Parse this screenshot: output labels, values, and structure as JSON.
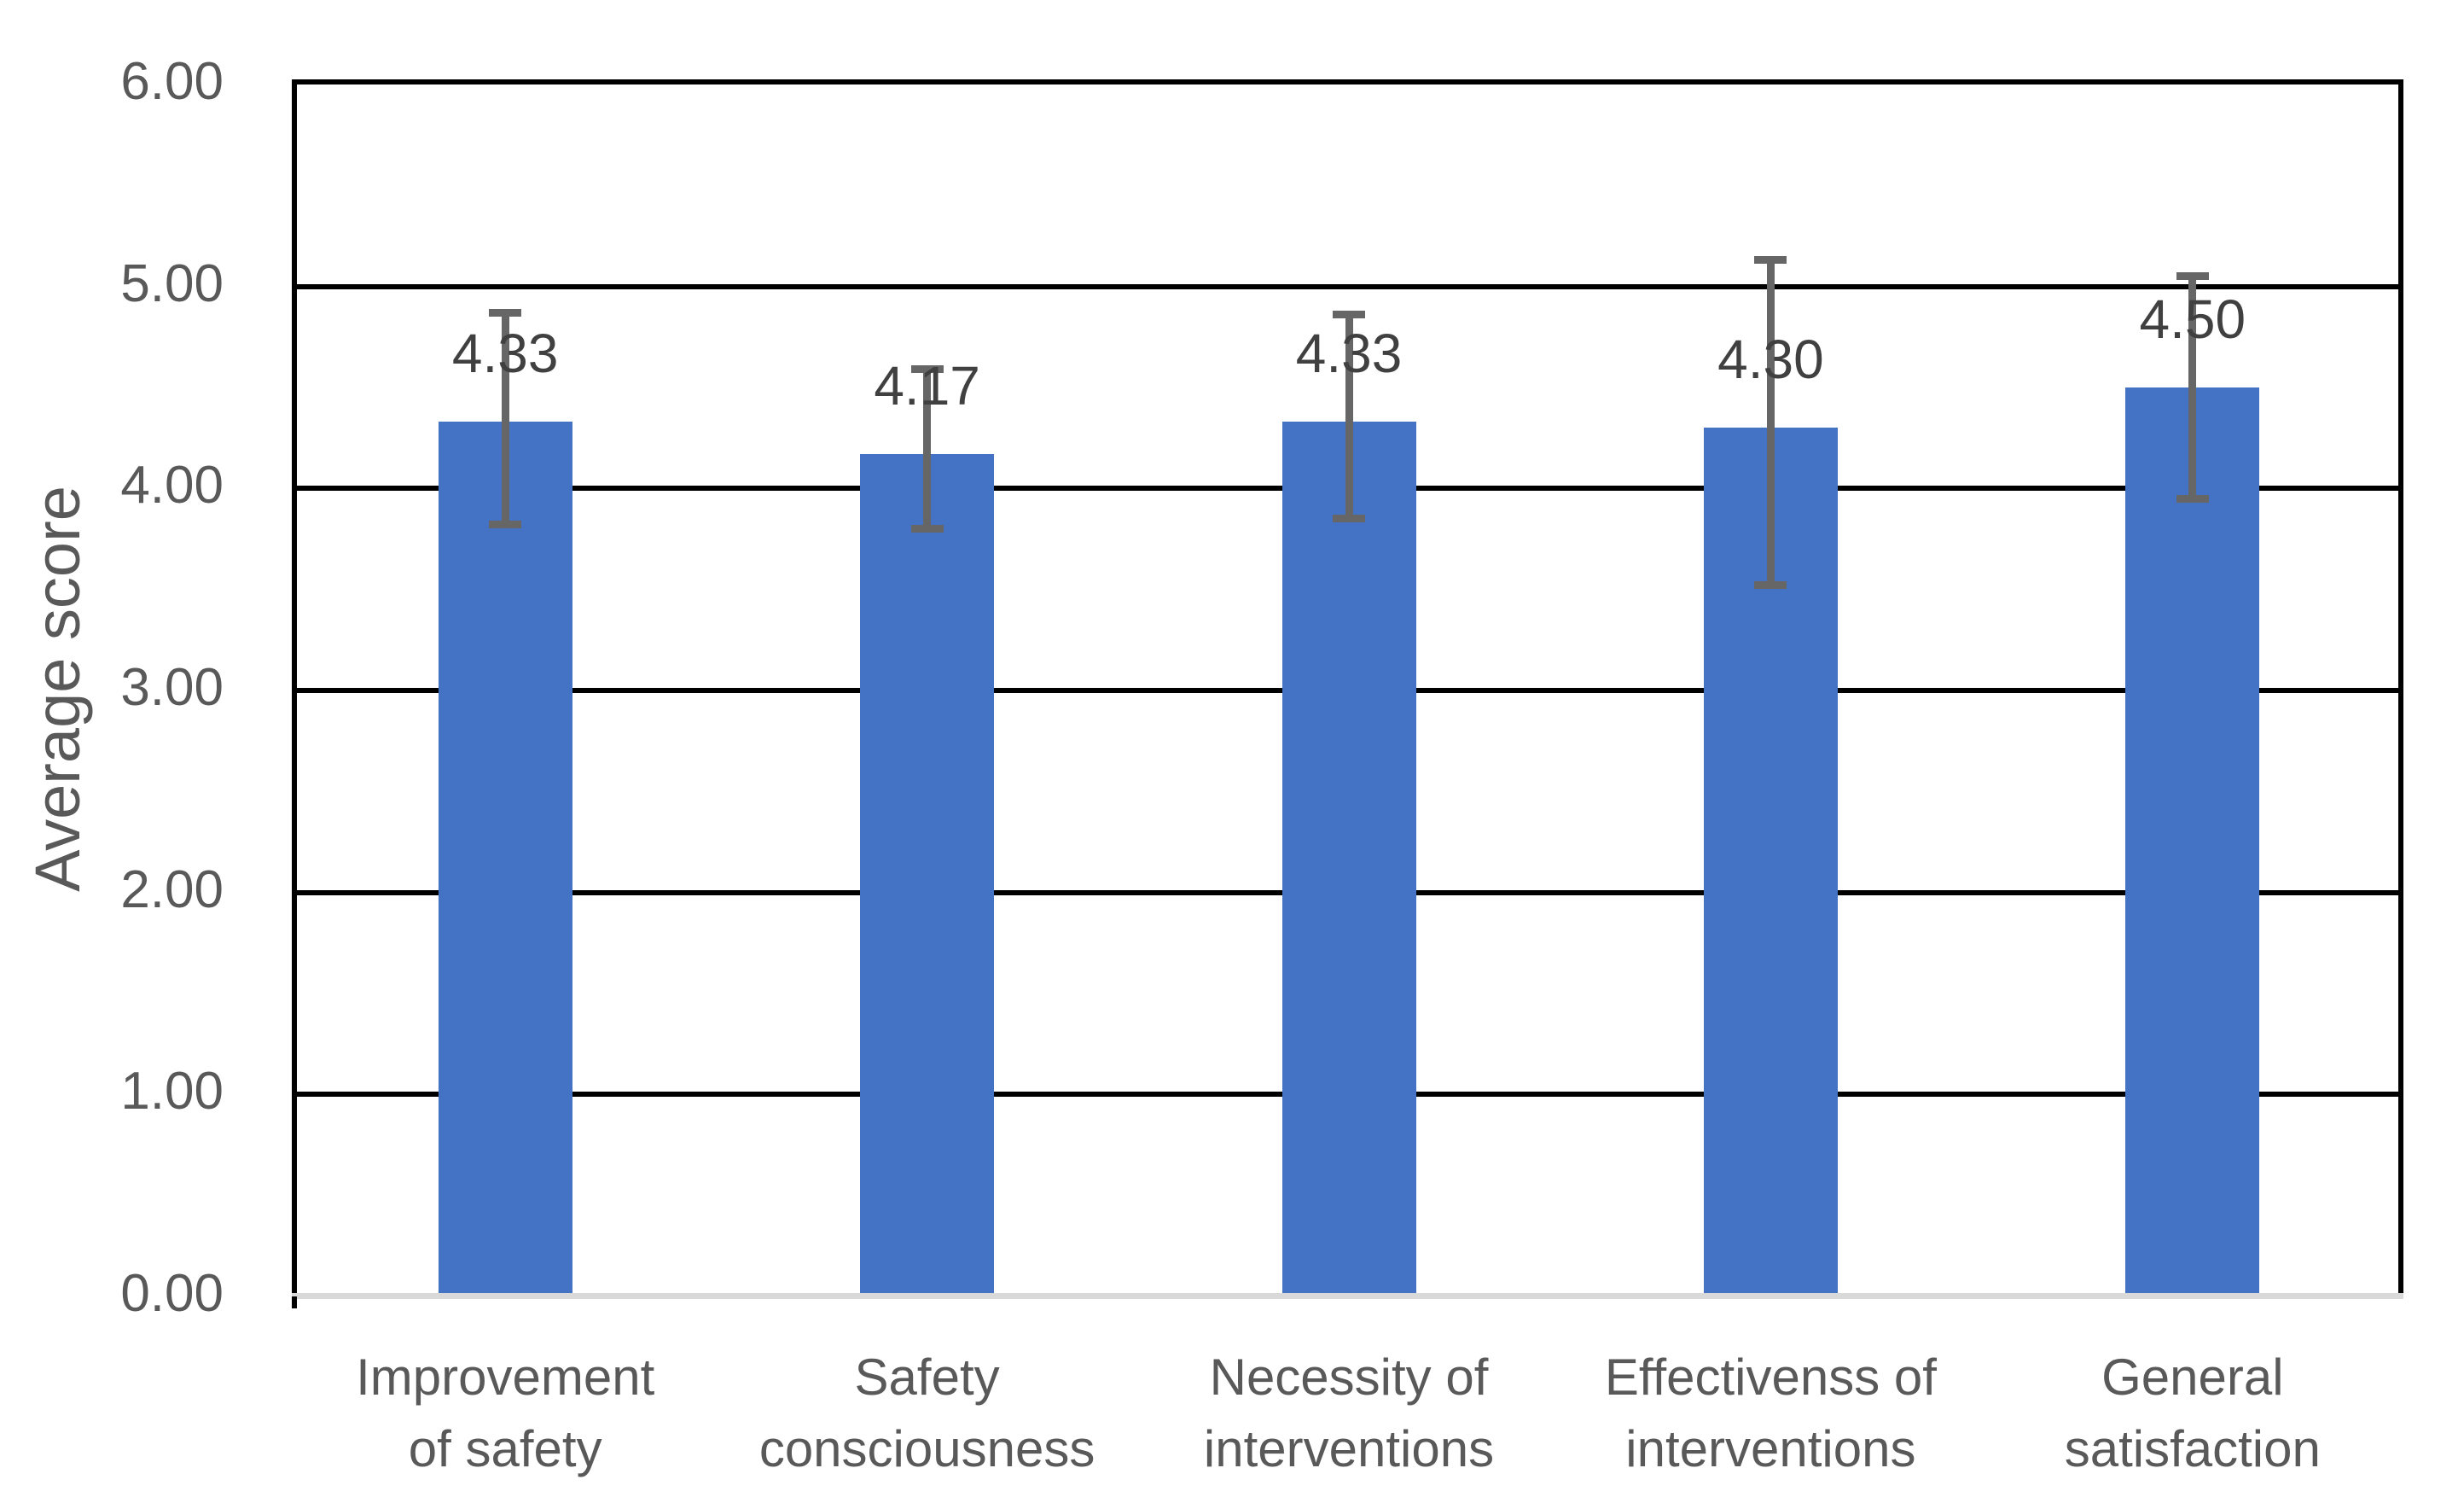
{
  "chart_data": {
    "type": "bar",
    "title": "",
    "xlabel": "",
    "ylabel": "Average score",
    "ylim": [
      0,
      6
    ],
    "ytick_interval": 1.0,
    "ytick_labels": [
      "0.00",
      "1.00",
      "2.00",
      "3.00",
      "4.00",
      "5.00",
      "6.00"
    ],
    "grid": true,
    "legend": false,
    "categories": [
      "Improvement of safety",
      "Safety consciousness",
      "Necessity of interventions",
      "Effectivenss of interventions",
      "General satisfaction"
    ],
    "category_label_lines": [
      [
        "Improvement",
        "of safety"
      ],
      [
        "Safety",
        "consciousness"
      ],
      [
        "Necessity of",
        "interventions"
      ],
      [
        "Effectivenss of",
        "interventions"
      ],
      [
        "General",
        "satisfaction"
      ]
    ],
    "values": [
      4.33,
      4.17,
      4.33,
      4.3,
      4.5
    ],
    "data_labels": [
      "4.33",
      "4.17",
      "4.33",
      "4.30",
      "4.50"
    ],
    "error_bars": [
      {
        "upper": 4.87,
        "lower": 3.82
      },
      {
        "upper": 4.59,
        "lower": 3.8
      },
      {
        "upper": 4.86,
        "lower": 3.85
      },
      {
        "upper": 5.13,
        "lower": 3.52
      },
      {
        "upper": 5.05,
        "lower": 3.95
      }
    ],
    "colors": {
      "bar": "#4472C4",
      "error_bar": "#666666",
      "data_label": "#404040",
      "axis_text": "#595959",
      "gridline": "#000000",
      "baseline": "#D9D9D9"
    }
  }
}
